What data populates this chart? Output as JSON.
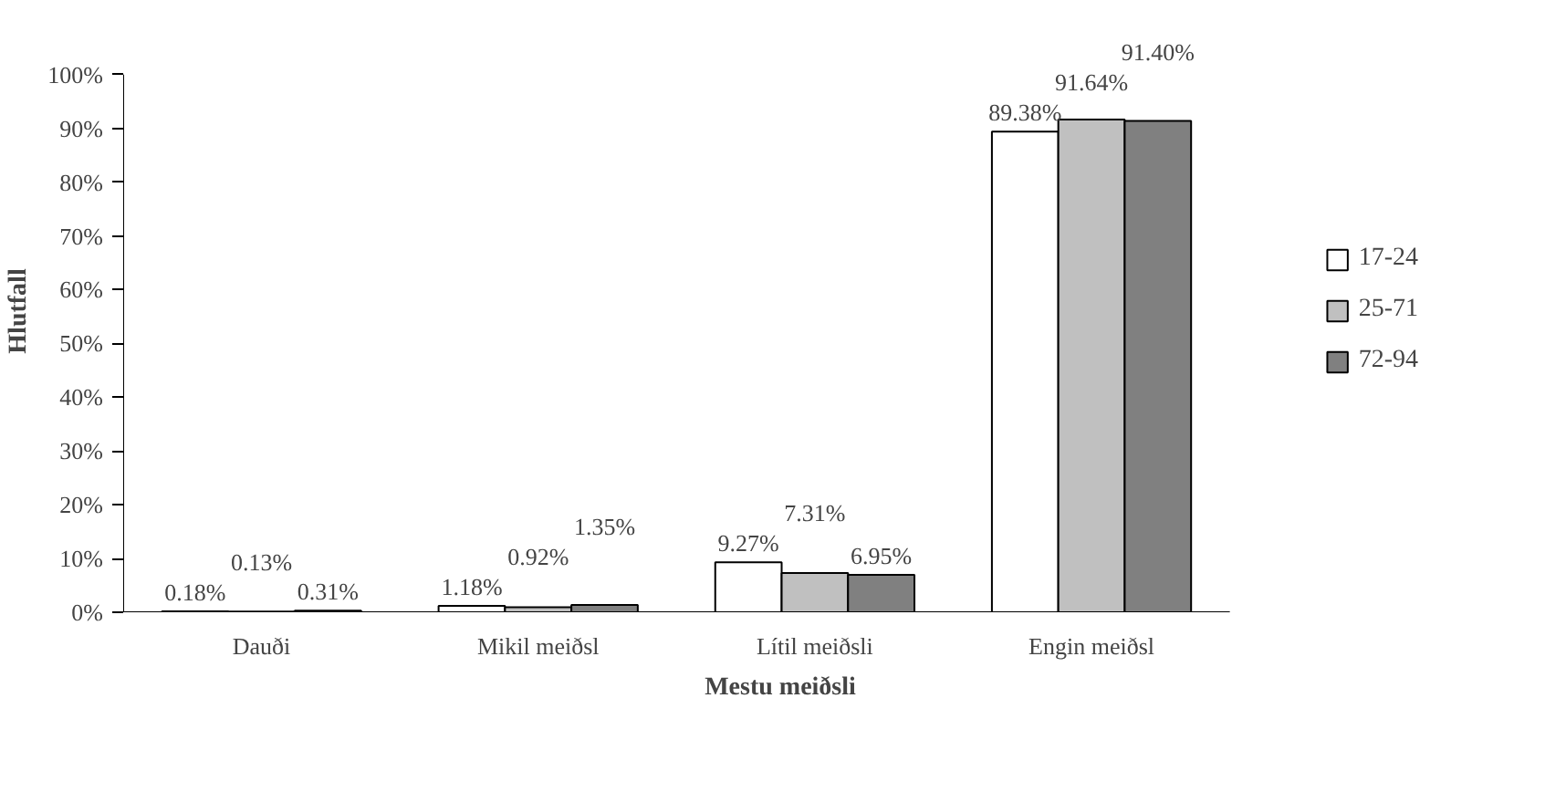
{
  "chart_data": {
    "type": "bar",
    "xlabel": "Mestu meiðsli",
    "ylabel": "Hlutfall",
    "categories": [
      "Dauði",
      "Mikil meiðsl",
      "Lítil meiðsli",
      "Engin meiðsl"
    ],
    "series": [
      {
        "name": "17-24",
        "color": "#ffffff",
        "values": [
          0.18,
          1.18,
          9.27,
          89.38
        ],
        "value_labels": [
          "0.18%",
          "1.18%",
          "9.27%",
          "89.38%"
        ]
      },
      {
        "name": "25-71",
        "color": "#c0c0c0",
        "values": [
          0.13,
          0.92,
          7.31,
          91.64
        ],
        "value_labels": [
          "0.13%",
          "0.92%",
          "7.31%",
          "91.64%"
        ]
      },
      {
        "name": "72-94",
        "color": "#808080",
        "values": [
          0.31,
          1.35,
          6.95,
          91.4
        ],
        "value_labels": [
          "0.31%",
          "1.35%",
          "6.95%",
          "91.40%"
        ]
      }
    ],
    "ylim": [
      0,
      100
    ],
    "yticks": [
      {
        "value": 0,
        "label": "0%"
      },
      {
        "value": 10,
        "label": "10%"
      },
      {
        "value": 20,
        "label": "20%"
      },
      {
        "value": 30,
        "label": "30%"
      },
      {
        "value": 40,
        "label": "40%"
      },
      {
        "value": 50,
        "label": "50%"
      },
      {
        "value": 60,
        "label": "60%"
      },
      {
        "value": 70,
        "label": "70%"
      },
      {
        "value": 80,
        "label": "80%"
      },
      {
        "value": 90,
        "label": "90%"
      },
      {
        "value": 100,
        "label": "100%"
      }
    ],
    "grid": false,
    "legend": "right"
  }
}
